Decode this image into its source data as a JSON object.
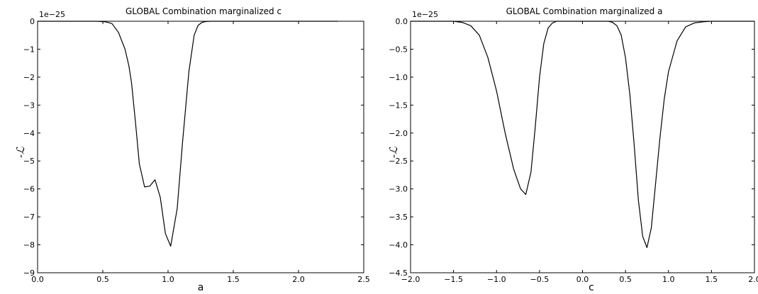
{
  "chart_data": [
    {
      "type": "line",
      "title": "GLOBAL Combination marginalized c",
      "xlabel": "a",
      "ylabel": "-ℒ",
      "offset_text": "1e−25",
      "xlim": [
        0.0,
        2.5
      ],
      "ylim": [
        -9,
        0
      ],
      "xticks": [
        0.0,
        0.5,
        1.0,
        1.5,
        2.0,
        2.5
      ],
      "xtick_labels": [
        "0.0",
        "0.5",
        "1.0",
        "1.5",
        "2.0",
        "2.5"
      ],
      "yticks": [
        0,
        -1,
        -2,
        -3,
        -4,
        -5,
        -6,
        -7,
        -8,
        -9
      ],
      "ytick_labels": [
        "0",
        "−1",
        "−2",
        "−3",
        "−4",
        "−5",
        "−6",
        "−7",
        "−8",
        "−9"
      ],
      "grid": false,
      "series": [
        {
          "color": "#000000",
          "x": [
            0.0,
            0.45,
            0.52,
            0.57,
            0.62,
            0.67,
            0.7,
            0.72,
            0.75,
            0.78,
            0.82,
            0.86,
            0.9,
            0.94,
            0.98,
            1.02,
            1.07,
            1.11,
            1.16,
            1.2,
            1.23,
            1.26,
            1.29,
            1.33,
            1.4,
            2.3
          ],
          "y": [
            0.0,
            0.0,
            -0.02,
            -0.08,
            -0.4,
            -1.0,
            -1.6,
            -2.2,
            -3.6,
            -5.1,
            -5.93,
            -5.9,
            -5.67,
            -6.3,
            -7.6,
            -8.05,
            -6.7,
            -4.4,
            -1.8,
            -0.5,
            -0.15,
            -0.04,
            -0.01,
            0.0,
            0.0,
            0.0
          ]
        }
      ]
    },
    {
      "type": "line",
      "title": "GLOBAL Combination marginalized a",
      "xlabel": "c",
      "ylabel": "-ℒ",
      "offset_text": "1e−25",
      "xlim": [
        -2.0,
        2.0
      ],
      "ylim": [
        -4.5,
        0.0
      ],
      "xticks": [
        -2.0,
        -1.5,
        -1.0,
        -0.5,
        0.0,
        0.5,
        1.0,
        1.5,
        2.0
      ],
      "xtick_labels": [
        "−2.0",
        "−1.5",
        "−1.0",
        "−0.5",
        "0.0",
        "0.5",
        "1.0",
        "1.5",
        "2.0"
      ],
      "yticks": [
        0.0,
        -0.5,
        -1.0,
        -1.5,
        -2.0,
        -2.5,
        -3.0,
        -3.5,
        -4.0,
        -4.5
      ],
      "ytick_labels": [
        "0.0",
        "−0.5",
        "−1.0",
        "−1.5",
        "−2.0",
        "−2.5",
        "−3.0",
        "−3.5",
        "−4.0",
        "−4.5"
      ],
      "grid": false,
      "series": [
        {
          "color": "#000000",
          "x": [
            -2.0,
            -1.5,
            -1.4,
            -1.3,
            -1.2,
            -1.1,
            -1.0,
            -0.9,
            -0.8,
            -0.72,
            -0.66,
            -0.6,
            -0.55,
            -0.5,
            -0.45,
            -0.4,
            -0.35,
            -0.3,
            -0.2,
            0.0,
            0.2,
            0.3,
            0.35,
            0.4,
            0.45,
            0.5,
            0.55,
            0.6,
            0.65,
            0.7,
            0.75,
            0.8,
            0.85,
            0.9,
            0.95,
            1.0,
            1.1,
            1.2,
            1.3,
            1.4,
            1.5,
            2.0
          ],
          "y": [
            0.0,
            0.0,
            -0.02,
            -0.08,
            -0.25,
            -0.65,
            -1.25,
            -2.0,
            -2.65,
            -3.0,
            -3.1,
            -2.7,
            -1.9,
            -1.0,
            -0.4,
            -0.12,
            -0.03,
            0.0,
            0.0,
            0.0,
            0.0,
            0.0,
            -0.02,
            -0.08,
            -0.25,
            -0.65,
            -1.3,
            -2.2,
            -3.2,
            -3.85,
            -4.05,
            -3.7,
            -2.9,
            -2.1,
            -1.4,
            -0.9,
            -0.35,
            -0.1,
            -0.03,
            -0.01,
            0.0,
            0.0
          ]
        }
      ]
    }
  ]
}
